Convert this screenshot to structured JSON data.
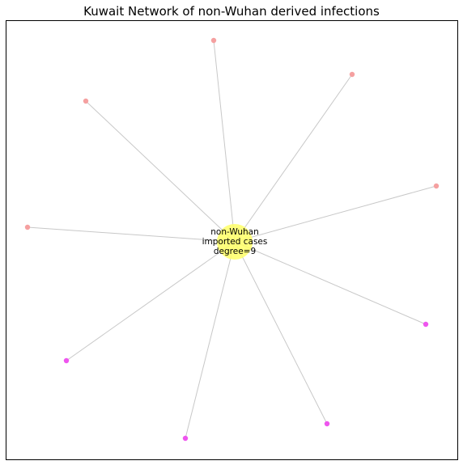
{
  "figure": {
    "title": "Kuwait Network of non-Wuhan derived infections"
  },
  "network": {
    "hub": {
      "label_lines": [
        "non-Wuhan",
        "imported cases",
        "degree=9"
      ],
      "color": "#ffff66"
    },
    "edge_color": "#c8c8c8",
    "leaf_colors": {
      "salmon": "#f5a0a0",
      "magenta": "#ee55ee"
    },
    "leaves": [
      {
        "id": "leaf-1",
        "color_key": "salmon"
      },
      {
        "id": "leaf-2",
        "color_key": "salmon"
      },
      {
        "id": "leaf-3",
        "color_key": "salmon"
      },
      {
        "id": "leaf-4",
        "color_key": "salmon"
      },
      {
        "id": "leaf-5",
        "color_key": "salmon"
      },
      {
        "id": "leaf-6",
        "color_key": "magenta"
      },
      {
        "id": "leaf-7",
        "color_key": "magenta"
      },
      {
        "id": "leaf-8",
        "color_key": "magenta"
      },
      {
        "id": "leaf-9",
        "color_key": "magenta"
      }
    ]
  }
}
